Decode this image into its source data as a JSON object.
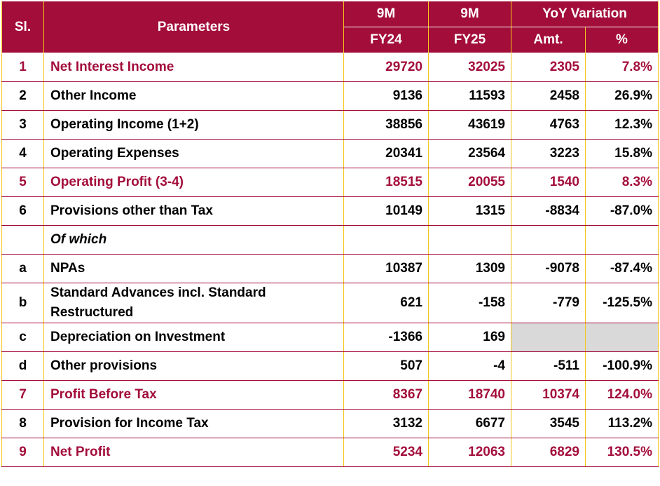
{
  "header": {
    "sl": "Sl.",
    "parameters": "Parameters",
    "col1_top": "9M",
    "col1_bottom": "FY24",
    "col2_top": "9M",
    "col2_bottom": "FY25",
    "yoy": "YoY Variation",
    "amt": "Amt.",
    "pct": "%"
  },
  "rows": [
    {
      "sl": "1",
      "param": "Net Interest Income",
      "fy24": "29720",
      "fy25": "32025",
      "amt": "2305",
      "pct": "7.8%"
    },
    {
      "sl": "2",
      "param": "Other Income",
      "fy24": "9136",
      "fy25": "11593",
      "amt": "2458",
      "pct": "26.9%"
    },
    {
      "sl": "3",
      "param": "Operating Income (1+2)",
      "fy24": "38856",
      "fy25": "43619",
      "amt": "4763",
      "pct": "12.3%"
    },
    {
      "sl": "4",
      "param": "Operating Expenses",
      "fy24": "20341",
      "fy25": "23564",
      "amt": "3223",
      "pct": "15.8%"
    },
    {
      "sl": "5",
      "param": "Operating Profit (3-4)",
      "fy24": "18515",
      "fy25": "20055",
      "amt": "1540",
      "pct": "8.3%"
    },
    {
      "sl": "6",
      "param": "Provisions other than Tax",
      "fy24": "10149",
      "fy25": "1315",
      "amt": "-8834",
      "pct": "-87.0%"
    },
    {
      "sl": "",
      "param": "Of which",
      "fy24": "",
      "fy25": "",
      "amt": "",
      "pct": ""
    },
    {
      "sl": "a",
      "param": "NPAs",
      "fy24": "10387",
      "fy25": "1309",
      "amt": "-9078",
      "pct": "-87.4%"
    },
    {
      "sl": "b",
      "param": "Standard Advances incl. Standard",
      "param2": "Restructured",
      "fy24": "621",
      "fy25": "-158",
      "amt": "-779",
      "pct": "-125.5%"
    },
    {
      "sl": "c",
      "param": "Depreciation on Investment",
      "fy24": "-1366",
      "fy25": "169",
      "amt": "",
      "pct": ""
    },
    {
      "sl": "d",
      "param": "Other provisions",
      "fy24": "507",
      "fy25": "-4",
      "amt": "-511",
      "pct": "-100.9%"
    },
    {
      "sl": "7",
      "param": "Profit Before Tax",
      "fy24": "8367",
      "fy25": "18740",
      "amt": "10374",
      "pct": "124.0%"
    },
    {
      "sl": "8",
      "param": "Provision for Income Tax",
      "fy24": "3132",
      "fy25": "6677",
      "amt": "3545",
      "pct": "113.2%"
    },
    {
      "sl": "9",
      "param": "Net Profit",
      "fy24": "5234",
      "fy25": "12063",
      "amt": "6829",
      "pct": "130.5%"
    }
  ],
  "colors": {
    "header_bg": "#A30D3A",
    "highlight_text": "#A30D3A",
    "column_border": "#F5C518",
    "empty_cell": "#D9D9D9"
  }
}
